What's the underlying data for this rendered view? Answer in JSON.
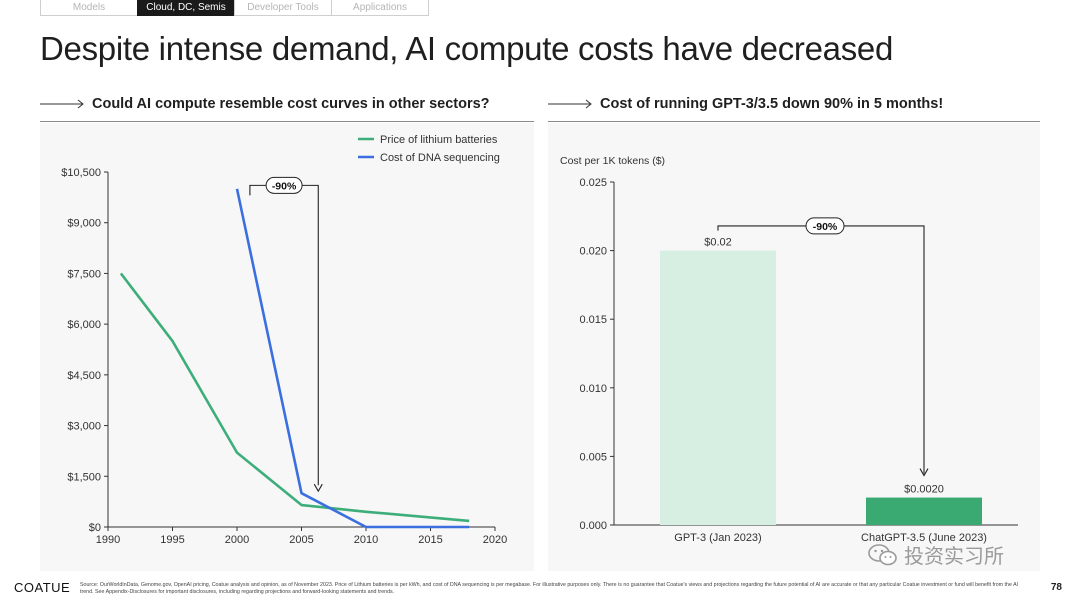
{
  "tabs": [
    "Models",
    "Cloud, DC, Semis",
    "Developer Tools",
    "Applications"
  ],
  "active_tab_index": 1,
  "title": "Despite intense demand, AI compute costs have decreased",
  "left_section_title": "Could AI compute resemble cost curves in other sectors?",
  "right_section_title": "Cost of running GPT-3/3.5 down 90% in 5 months!",
  "colors": {
    "lithium": "#3dae7a",
    "dna": "#3b6fe0",
    "bar_light": "#d6efe2",
    "bar_dark": "#3aaa72"
  },
  "chart_data": [
    {
      "type": "line",
      "title": "Could AI compute resemble cost curves in other sectors?",
      "xlabel": "",
      "ylabel": "",
      "xlim": [
        1990,
        2020
      ],
      "ylim": [
        0,
        10500
      ],
      "x_ticks": [
        1990,
        1995,
        2000,
        2005,
        2010,
        2015,
        2020
      ],
      "y_ticks": [
        0,
        1500,
        3000,
        4500,
        6000,
        7500,
        9000,
        10500
      ],
      "y_tick_labels": [
        "$0",
        "$1,500",
        "$3,000",
        "$4,500",
        "$6,000",
        "$7,500",
        "$9,000",
        "$10,500"
      ],
      "series": [
        {
          "name": "Price of lithium batteries",
          "color": "#3dae7a",
          "x": [
            1991,
            1995,
            2000,
            2005,
            2010,
            2018
          ],
          "y": [
            7500,
            5500,
            2200,
            650,
            450,
            180
          ]
        },
        {
          "name": "Cost of DNA sequencing",
          "color": "#3b6fe0",
          "x": [
            2000,
            2005,
            2010,
            2018
          ],
          "y": [
            10000,
            1000,
            0,
            0
          ]
        }
      ],
      "annotation": {
        "label": "-90%",
        "from_x": 2001,
        "to_x": 2006.3,
        "y": 10400,
        "arrow_to_y": 1000
      },
      "legend_position": "top-right"
    },
    {
      "type": "bar",
      "title": "Cost of running GPT-3/3.5 down 90% in 5 months!",
      "ylabel": "Cost per 1K tokens ($)",
      "categories": [
        "GPT-3 (Jan 2023)",
        "ChatGPT-3.5 (June 2023)"
      ],
      "values": [
        0.02,
        0.002
      ],
      "value_labels": [
        "$0.02",
        "$0.0020"
      ],
      "ylim": [
        0,
        0.025
      ],
      "y_ticks": [
        0,
        0.005,
        0.01,
        0.015,
        0.02,
        0.025
      ],
      "y_tick_labels": [
        "0.000",
        "0.005",
        "0.010",
        "0.015",
        "0.020",
        "0.025"
      ],
      "annotation": {
        "label": "-90%",
        "y": 0.0218
      }
    }
  ],
  "footer": {
    "logo": "COATUE",
    "source": "Source: OurWorldInData, Genome.gov, OpenAI pricing, Coatue analysis and opinion, as of November 2023. Price of Lithium batteries is per kWh, and cost of DNA sequencing is per megabase. For illustrative purposes only. There is no guarantee that Coatue's views and projections regarding the future potential of AI are accurate or that any particular Coatue investment or fund will benefit from the AI trend. See Appendix-Disclosures for important disclosures, including regarding projections and forward-looking statements and trends.",
    "page": "78"
  },
  "watermark": "投资实习所"
}
